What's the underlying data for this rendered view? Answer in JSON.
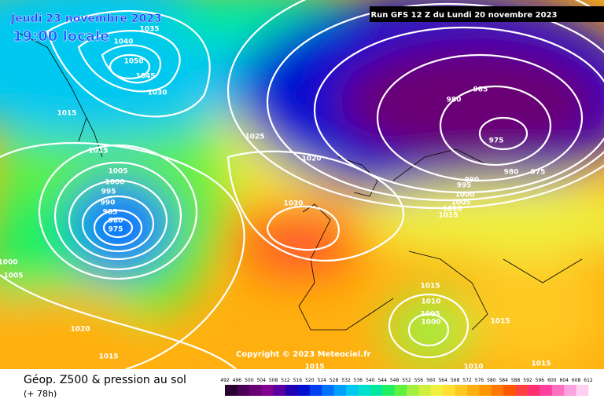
{
  "header": {
    "date": "Jeudi 23 novembre 2023",
    "time": "19:00 locale",
    "run": "Run GFS 12 Z du Lundi 20 novembre 2023"
  },
  "copyright": "Copyright © 2023 Meteociel.fr",
  "footer": {
    "title": "Géop. Z500 & pression au sol",
    "lead": "(+ 78h)"
  },
  "isobar_labels": [
    1035,
    1040,
    1050,
    1045,
    1030,
    1015,
    1015,
    1025,
    1020,
    1030,
    1005,
    1000,
    995,
    990,
    985,
    980,
    975,
    1000,
    1005,
    1020,
    980,
    985,
    975,
    980,
    975,
    990,
    995,
    1000,
    1005,
    1010,
    1015,
    1015,
    1010,
    1005,
    1000,
    1015,
    1010,
    1015,
    1015,
    1015
  ],
  "legend": {
    "labels": [
      492,
      496,
      500,
      504,
      508,
      512,
      516,
      520,
      524,
      528,
      532,
      536,
      540,
      544,
      548,
      552,
      556,
      560,
      564,
      568,
      572,
      576,
      580,
      584,
      588,
      592,
      596,
      600,
      604,
      608,
      612
    ],
    "colors": [
      "#2a0030",
      "#4a0055",
      "#6a0075",
      "#80008f",
      "#5a00a0",
      "#2000b0",
      "#0010d0",
      "#0040f0",
      "#0070ff",
      "#00a0ff",
      "#00c8f0",
      "#00e0d0",
      "#00e8a0",
      "#20f060",
      "#60f040",
      "#a0f040",
      "#d0f040",
      "#f0f040",
      "#ffe030",
      "#ffc820",
      "#ffb010",
      "#ff9800",
      "#ff7800",
      "#ff5800",
      "#ff4040",
      "#ff3070",
      "#ff40a0",
      "#ff70c0",
      "#ffa0e0",
      "#ffd0f0"
    ]
  }
}
